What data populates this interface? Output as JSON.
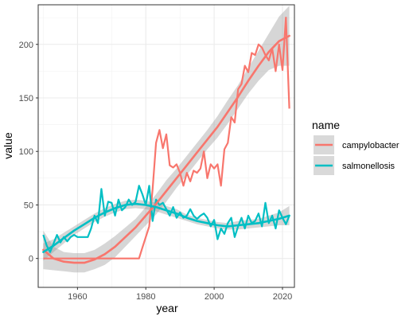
{
  "chart_data": {
    "type": "line",
    "xlabel": "year",
    "ylabel": "value",
    "xlim": [
      1948.5,
      2023.5
    ],
    "ylim": [
      -27,
      237
    ],
    "x_ticks": [
      1960,
      1980,
      2000,
      2020
    ],
    "y_ticks": [
      0,
      50,
      100,
      150,
      200
    ],
    "x_tick_labels": [
      "1960",
      "1980",
      "2000",
      "2020"
    ],
    "y_tick_labels": [
      "0",
      "50",
      "100",
      "150",
      "200"
    ],
    "grid": true,
    "theme": "bw",
    "legend": {
      "title": "name",
      "position": "right"
    },
    "series": [
      {
        "name": "campylobacter",
        "color": "#F8766D",
        "x": [
          1950,
          1951,
          1952,
          1953,
          1954,
          1955,
          1956,
          1957,
          1958,
          1959,
          1960,
          1961,
          1962,
          1963,
          1964,
          1965,
          1966,
          1967,
          1968,
          1969,
          1970,
          1971,
          1972,
          1973,
          1974,
          1975,
          1976,
          1977,
          1978,
          1979,
          1980,
          1981,
          1982,
          1983,
          1984,
          1985,
          1986,
          1987,
          1988,
          1989,
          1990,
          1991,
          1992,
          1993,
          1994,
          1995,
          1996,
          1997,
          1998,
          1999,
          2000,
          2001,
          2002,
          2003,
          2004,
          2005,
          2006,
          2007,
          2008,
          2009,
          2010,
          2011,
          2012,
          2013,
          2014,
          2015,
          2016,
          2017,
          2018,
          2019,
          2020,
          2021,
          2022
        ],
        "values": [
          0,
          0,
          0,
          0,
          0,
          0,
          0,
          0,
          0,
          0,
          0,
          0,
          0,
          0,
          0,
          0,
          0,
          0,
          0,
          0,
          0,
          0,
          0,
          0,
          0,
          0,
          0,
          0,
          0,
          10,
          20,
          30,
          65,
          108,
          120,
          103,
          116,
          87,
          85,
          88,
          80,
          68,
          80,
          72,
          82,
          80,
          84,
          100,
          75,
          88,
          84,
          88,
          68,
          102,
          108,
          132,
          127,
          158,
          163,
          180,
          174,
          192,
          190,
          200,
          197,
          190,
          185,
          196,
          175,
          200,
          176,
          225,
          140
        ],
        "smooth": {
          "x": [
            1950,
            1953,
            1956,
            1959,
            1962,
            1965,
            1968,
            1971,
            1974,
            1977,
            1980,
            1983,
            1986,
            1989,
            1992,
            1995,
            1998,
            2001,
            2004,
            2007,
            2010,
            2013,
            2016,
            2019,
            2022
          ],
          "y": [
            8,
            0,
            -3,
            -4,
            -4,
            -1,
            4,
            11,
            20,
            29,
            40,
            51,
            63,
            75,
            87,
            99,
            111,
            123,
            137,
            151,
            166,
            180,
            193,
            203,
            208
          ],
          "lower": [
            -10,
            -11,
            -12,
            -13,
            -13,
            -10,
            -6,
            1,
            11,
            21,
            31,
            41,
            53,
            66,
            78,
            90,
            102,
            113,
            126,
            140,
            154,
            166,
            176,
            180,
            180
          ],
          "upper": [
            26,
            11,
            6,
            5,
            5,
            8,
            14,
            21,
            29,
            37,
            48,
            60,
            73,
            84,
            96,
            108,
            120,
            133,
            148,
            162,
            178,
            194,
            210,
            226,
            236
          ]
        }
      },
      {
        "name": "salmonellosis",
        "color": "#00BFC4",
        "x": [
          1950,
          1951,
          1952,
          1953,
          1954,
          1955,
          1956,
          1957,
          1958,
          1959,
          1960,
          1961,
          1962,
          1963,
          1964,
          1965,
          1966,
          1967,
          1968,
          1969,
          1970,
          1971,
          1972,
          1973,
          1974,
          1975,
          1976,
          1977,
          1978,
          1979,
          1980,
          1981,
          1982,
          1983,
          1984,
          1985,
          1986,
          1987,
          1988,
          1989,
          1990,
          1991,
          1992,
          1993,
          1994,
          1995,
          1996,
          1997,
          1998,
          1999,
          2000,
          2001,
          2002,
          2003,
          2004,
          2005,
          2006,
          2007,
          2008,
          2009,
          2010,
          2011,
          2012,
          2013,
          2014,
          2015,
          2016,
          2017,
          2018,
          2019,
          2020,
          2021,
          2022
        ],
        "values": [
          22,
          12,
          6,
          14,
          22,
          15,
          20,
          16,
          20,
          22,
          20,
          20,
          20,
          20,
          28,
          40,
          33,
          65,
          40,
          53,
          52,
          40,
          55,
          45,
          48,
          55,
          50,
          53,
          68,
          60,
          50,
          68,
          35,
          55,
          50,
          52,
          46,
          40,
          48,
          38,
          43,
          38,
          40,
          46,
          40,
          37,
          40,
          42,
          38,
          30,
          36,
          18,
          28,
          23,
          33,
          38,
          20,
          30,
          38,
          28,
          40,
          33,
          35,
          42,
          30,
          52,
          33,
          40,
          28,
          45,
          38,
          32,
          40
        ],
        "smooth": {
          "x": [
            1950,
            1953,
            1956,
            1959,
            1962,
            1965,
            1968,
            1971,
            1974,
            1977,
            1980,
            1983,
            1986,
            1989,
            1992,
            1995,
            1998,
            2001,
            2004,
            2007,
            2010,
            2013,
            2016,
            2019,
            2022
          ],
          "y": [
            6,
            12,
            19,
            26,
            32,
            38,
            43,
            47,
            50,
            51,
            50,
            48,
            45,
            42,
            38,
            35,
            33,
            31,
            30,
            31,
            32,
            33,
            35,
            37,
            40
          ],
          "lower": [
            -2,
            6,
            14,
            22,
            28,
            34,
            39,
            43,
            46,
            47,
            46,
            44,
            41,
            38,
            35,
            32,
            30,
            28,
            27,
            27,
            28,
            29,
            30,
            31,
            31
          ],
          "upper": [
            14,
            18,
            24,
            30,
            36,
            42,
            47,
            51,
            54,
            55,
            54,
            52,
            49,
            46,
            41,
            38,
            36,
            34,
            33,
            35,
            36,
            37,
            40,
            43,
            49
          ]
        }
      }
    ]
  }
}
